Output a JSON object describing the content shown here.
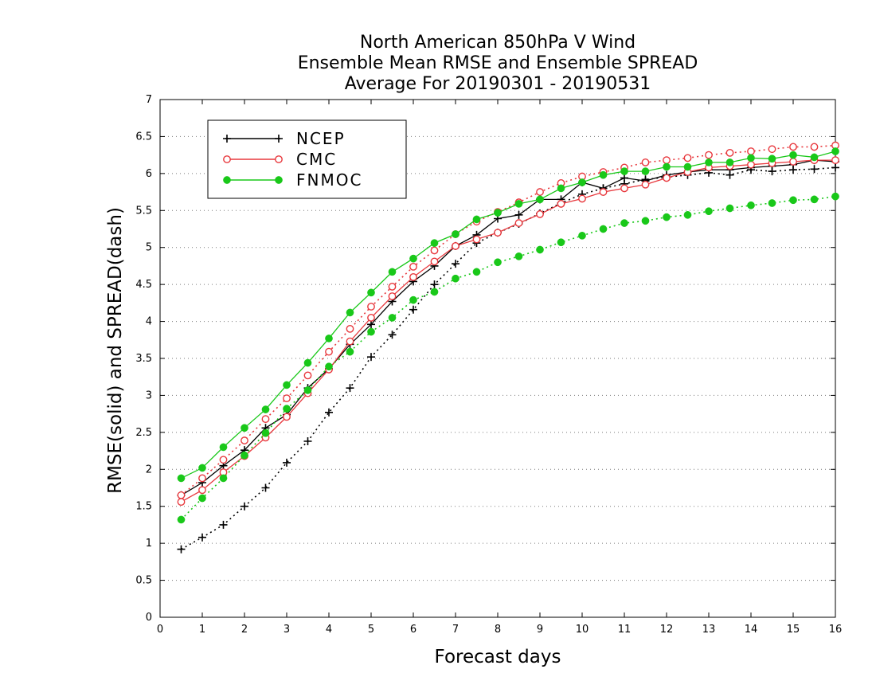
{
  "chart_data": {
    "type": "line",
    "title_lines": [
      "North American 850hPa V Wind",
      "Ensemble Mean RMSE and Ensemble SPREAD",
      "Average For 20190301 - 20190531"
    ],
    "xlabel": "Forecast days",
    "ylabel": "RMSE(solid) and SPREAD(dash)",
    "xlim": [
      0,
      16
    ],
    "ylim": [
      0,
      7
    ],
    "x_ticks": [
      "0",
      "1",
      "2",
      "3",
      "4",
      "5",
      "6",
      "7",
      "8",
      "9",
      "10",
      "11",
      "12",
      "13",
      "14",
      "15",
      "16"
    ],
    "y_ticks": [
      "0",
      "0.5",
      "1",
      "1.5",
      "2",
      "2.5",
      "3",
      "3.5",
      "4",
      "4.5",
      "5",
      "5.5",
      "6",
      "6.5",
      "7"
    ],
    "grid": "horizontal dotted",
    "legend_position": "top-left",
    "x": [
      0.5,
      1,
      1.5,
      2,
      2.5,
      3,
      3.5,
      4,
      4.5,
      5,
      5.5,
      6,
      6.5,
      7,
      7.5,
      8,
      8.5,
      9,
      9.5,
      10,
      10.5,
      11,
      11.5,
      12,
      12.5,
      13,
      13.5,
      14,
      14.5,
      15,
      15.5,
      16
    ],
    "series": [
      {
        "name": "NCEP",
        "color": "#000000",
        "marker": "plus",
        "rmse": [
          1.65,
          1.82,
          2.05,
          2.26,
          2.56,
          2.74,
          3.1,
          3.36,
          3.69,
          3.96,
          4.27,
          4.54,
          4.75,
          5.02,
          5.17,
          5.39,
          5.44,
          5.65,
          5.65,
          5.88,
          5.8,
          5.94,
          5.9,
          5.98,
          6.02,
          6.05,
          6.05,
          6.08,
          6.1,
          6.12,
          6.18,
          6.16
        ],
        "spread": [
          0.92,
          1.08,
          1.25,
          1.5,
          1.75,
          2.09,
          2.38,
          2.77,
          3.1,
          3.52,
          3.82,
          4.16,
          4.5,
          4.78,
          5.06,
          5.2,
          5.32,
          5.46,
          5.6,
          5.72,
          5.8,
          5.86,
          5.92,
          5.95,
          5.98,
          6.01,
          5.98,
          6.05,
          6.03,
          6.05,
          6.06,
          6.08
        ]
      },
      {
        "name": "CMC",
        "color": "#e8383d",
        "marker": "open-circle",
        "rmse": [
          1.56,
          1.72,
          1.96,
          2.18,
          2.43,
          2.71,
          3.03,
          3.35,
          3.73,
          4.05,
          4.34,
          4.6,
          4.81,
          5.02,
          5.11,
          5.2,
          5.33,
          5.45,
          5.59,
          5.66,
          5.75,
          5.8,
          5.85,
          5.94,
          6.02,
          6.08,
          6.1,
          6.12,
          6.14,
          6.16,
          6.18,
          6.18
        ],
        "spread": [
          1.65,
          1.88,
          2.13,
          2.39,
          2.68,
          2.96,
          3.27,
          3.59,
          3.9,
          4.2,
          4.47,
          4.74,
          4.96,
          5.18,
          5.35,
          5.48,
          5.61,
          5.75,
          5.87,
          5.96,
          6.02,
          6.08,
          6.15,
          6.18,
          6.21,
          6.25,
          6.28,
          6.3,
          6.33,
          6.36,
          6.36,
          6.38
        ]
      },
      {
        "name": "FNMOC",
        "color": "#19c819",
        "marker": "filled-circle",
        "rmse": [
          1.88,
          2.02,
          2.3,
          2.56,
          2.81,
          3.14,
          3.44,
          3.77,
          4.12,
          4.39,
          4.67,
          4.85,
          5.06,
          5.18,
          5.38,
          5.47,
          5.59,
          5.65,
          5.8,
          5.88,
          5.98,
          6.03,
          6.03,
          6.09,
          6.09,
          6.15,
          6.15,
          6.21,
          6.2,
          6.25,
          6.22,
          6.3
        ],
        "spread": [
          1.32,
          1.61,
          1.88,
          2.19,
          2.49,
          2.82,
          3.07,
          3.39,
          3.59,
          3.86,
          4.05,
          4.29,
          4.4,
          4.58,
          4.67,
          4.8,
          4.88,
          4.97,
          5.07,
          5.16,
          5.25,
          5.33,
          5.36,
          5.41,
          5.44,
          5.49,
          5.53,
          5.57,
          5.6,
          5.64,
          5.65,
          5.69
        ]
      }
    ]
  }
}
